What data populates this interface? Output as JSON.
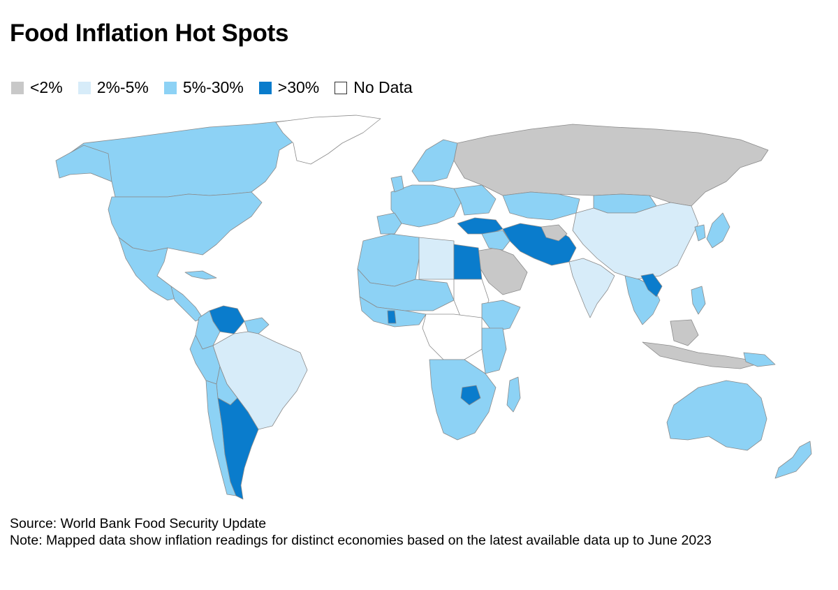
{
  "title": "Food Inflation Hot Spots",
  "legend": [
    {
      "label": "<2%",
      "color": "#c8c8c8",
      "key": "lt2"
    },
    {
      "label": "2%-5%",
      "color": "#d7ecf9",
      "key": "2to5"
    },
    {
      "label": "5%-30%",
      "color": "#8dd2f5",
      "key": "5to30"
    },
    {
      "label": ">30%",
      "color": "#0a7ccc",
      "key": "gt30"
    },
    {
      "label": "No Data",
      "color": "#ffffff",
      "key": "nodata"
    }
  ],
  "source": "Source: World Bank Food Security Update",
  "note": "Note: Mapped data show inflation readings for distinct economies based on the latest available data up to June 2023"
}
